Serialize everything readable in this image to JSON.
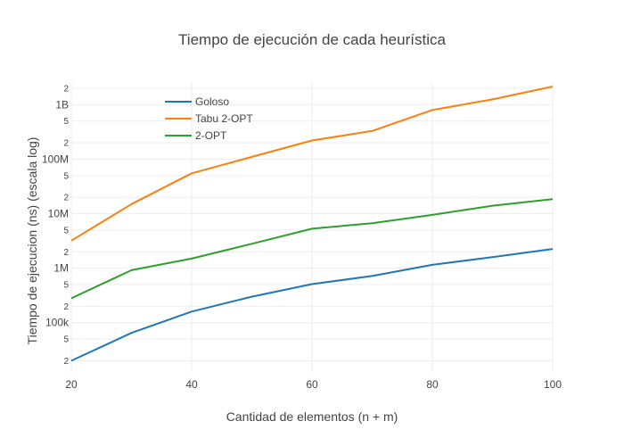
{
  "chart_data": {
    "type": "line",
    "title": "Tiempo de ejecución de cada heurística",
    "xlabel": "Cantidad de elementos (n + m)",
    "ylabel": "Tiempo de ejecucion (ns) (escala log)",
    "y_scale": "log",
    "xlim": [
      20,
      100
    ],
    "ylim": [
      12000,
      2600000000
    ],
    "x_ticks": [
      20,
      40,
      60,
      80,
      100
    ],
    "x_tick_labels": [
      "20",
      "40",
      "60",
      "80",
      "100"
    ],
    "y_major_ticks": [
      100000,
      1000000,
      10000000,
      100000000,
      1000000000
    ],
    "y_major_labels": [
      "100k",
      "1M",
      "10M",
      "100M",
      "1B"
    ],
    "y_minor_ticks": [
      20000,
      50000,
      200000,
      500000,
      2000000,
      5000000,
      20000000,
      50000000,
      200000000,
      500000000,
      2000000000
    ],
    "y_minor_labels": [
      "2",
      "5",
      "2",
      "5",
      "2",
      "5",
      "2",
      "5",
      "2",
      "5",
      "2"
    ],
    "grid": true,
    "legend_position": "top-left",
    "x": [
      20,
      30,
      40,
      50,
      60,
      70,
      80,
      90,
      100
    ],
    "series": [
      {
        "name": "Goloso",
        "color": "#1f77b4",
        "values": [
          20000,
          65000,
          160000,
          300000,
          510000,
          720000,
          1150000,
          1600000,
          2250000
        ]
      },
      {
        "name": "Tabu 2-OPT",
        "color": "#ff7f0e",
        "values": [
          3200000,
          15000000,
          55000000,
          110000000,
          220000000,
          330000000,
          800000000,
          1250000000,
          2150000000
        ]
      },
      {
        "name": "2-OPT",
        "color": "#2ca02c",
        "values": [
          280000,
          920000,
          1500000,
          2800000,
          5300000,
          6700000,
          9500000,
          14000000,
          18500000
        ]
      }
    ]
  }
}
